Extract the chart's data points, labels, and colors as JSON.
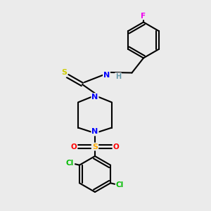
{
  "background_color": "#ebebeb",
  "atom_colors": {
    "N": "#0000ff",
    "S_thio": "#cccc00",
    "S_sulfonyl": "#ffaa00",
    "O": "#ff0000",
    "Cl": "#00bb00",
    "F": "#ee00ee",
    "H": "#6699aa",
    "C": "#000000"
  }
}
